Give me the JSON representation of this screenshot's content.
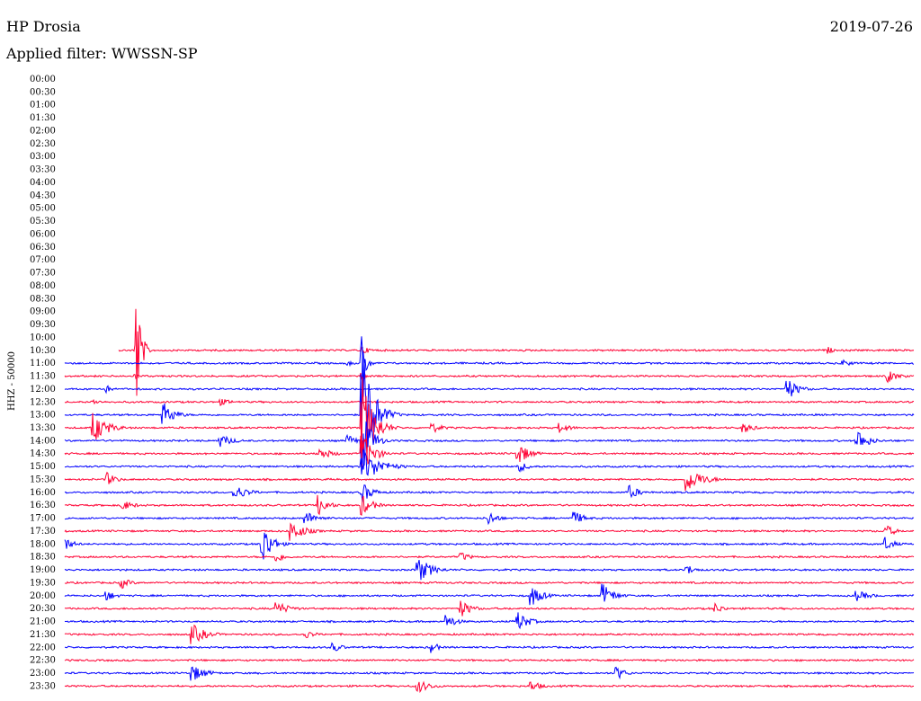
{
  "header": {
    "station": "HP Drosia",
    "date": "2019-07-26",
    "filter": "Applied filter: WWSSN-SP"
  },
  "colors": {
    "red": "#ff0033",
    "blue": "#0000ff"
  },
  "chart_data": {
    "type": "line",
    "title": "HP Drosia",
    "ylabel": "HHZ - 50000",
    "row_labels": [
      "00:00",
      "00:30",
      "01:00",
      "01:30",
      "02:00",
      "02:30",
      "03:00",
      "03:30",
      "04:00",
      "04:30",
      "05:00",
      "05:30",
      "06:00",
      "06:30",
      "07:00",
      "07:30",
      "08:00",
      "08:30",
      "09:00",
      "09:30",
      "10:00",
      "10:30",
      "11:00",
      "11:30",
      "12:00",
      "12:30",
      "13:00",
      "13:30",
      "14:00",
      "14:30",
      "15:00",
      "15:30",
      "16:00",
      "16:30",
      "17:00",
      "17:30",
      "18:00",
      "18:30",
      "19:00",
      "19:30",
      "20:00",
      "20:30",
      "21:00",
      "21:30",
      "22:00",
      "22:30",
      "23:00",
      "23:30"
    ],
    "trace_start_row": 21,
    "trace_colors_alternate": [
      "red",
      "blue"
    ],
    "events": [
      {
        "row": 21,
        "minute": 5,
        "amp": 90,
        "dur": 0.5
      },
      {
        "row": 21,
        "minute": 21,
        "amp": 4,
        "dur": 1.5
      },
      {
        "row": 21,
        "minute": 54,
        "amp": 4,
        "dur": 0.6
      },
      {
        "row": 22,
        "minute": 20,
        "amp": 3,
        "dur": 1
      },
      {
        "row": 22,
        "minute": 21,
        "amp": 30,
        "dur": 0.5
      },
      {
        "row": 22,
        "minute": 55,
        "amp": 4,
        "dur": 1.2
      },
      {
        "row": 23,
        "minute": 5,
        "amp": 3,
        "dur": 0.8
      },
      {
        "row": 23,
        "minute": 21,
        "amp": 4,
        "dur": 0.8
      },
      {
        "row": 23,
        "minute": 58,
        "amp": 9,
        "dur": 1.2
      },
      {
        "row": 24,
        "minute": 3,
        "amp": 4,
        "dur": 0.8
      },
      {
        "row": 24,
        "minute": 51,
        "amp": 14,
        "dur": 1.2
      },
      {
        "row": 25,
        "minute": 2,
        "amp": 3,
        "dur": 1.2
      },
      {
        "row": 25,
        "minute": 11,
        "amp": 4,
        "dur": 1.5
      },
      {
        "row": 26,
        "minute": 7,
        "amp": 14,
        "dur": 1.2
      },
      {
        "row": 26,
        "minute": 21,
        "amp": 80,
        "dur": 1.2
      },
      {
        "row": 27,
        "minute": 2,
        "amp": 18,
        "dur": 1.5
      },
      {
        "row": 27,
        "minute": 21,
        "amp": 60,
        "dur": 1.2
      },
      {
        "row": 27,
        "minute": 26,
        "amp": 6,
        "dur": 1.2
      },
      {
        "row": 27,
        "minute": 35,
        "amp": 6,
        "dur": 1.2
      },
      {
        "row": 27,
        "minute": 48,
        "amp": 6,
        "dur": 1.2
      },
      {
        "row": 28,
        "minute": 11,
        "amp": 7,
        "dur": 1.5
      },
      {
        "row": 28,
        "minute": 20,
        "amp": 7,
        "dur": 1
      },
      {
        "row": 28,
        "minute": 21,
        "amp": 40,
        "dur": 1
      },
      {
        "row": 28,
        "minute": 56,
        "amp": 14,
        "dur": 1.2
      },
      {
        "row": 29,
        "minute": 18,
        "amp": 7,
        "dur": 1.5
      },
      {
        "row": 29,
        "minute": 21,
        "amp": 25,
        "dur": 1.2
      },
      {
        "row": 29,
        "minute": 32,
        "amp": 14,
        "dur": 1.2
      },
      {
        "row": 30,
        "minute": 21,
        "amp": 20,
        "dur": 2
      },
      {
        "row": 30,
        "minute": 32,
        "amp": 7,
        "dur": 1.2
      },
      {
        "row": 31,
        "minute": 3,
        "amp": 8,
        "dur": 1
      },
      {
        "row": 31,
        "minute": 44,
        "amp": 14,
        "dur": 1.8
      },
      {
        "row": 32,
        "minute": 12,
        "amp": 9,
        "dur": 1.5
      },
      {
        "row": 32,
        "minute": 21,
        "amp": 12,
        "dur": 1.2
      },
      {
        "row": 32,
        "minute": 40,
        "amp": 8,
        "dur": 1
      },
      {
        "row": 33,
        "minute": 4,
        "amp": 6,
        "dur": 1.5
      },
      {
        "row": 33,
        "minute": 18,
        "amp": 12,
        "dur": 1
      },
      {
        "row": 33,
        "minute": 21,
        "amp": 12,
        "dur": 1.2
      },
      {
        "row": 34,
        "minute": 17,
        "amp": 8,
        "dur": 1.5
      },
      {
        "row": 34,
        "minute": 30,
        "amp": 8,
        "dur": 1
      },
      {
        "row": 34,
        "minute": 36,
        "amp": 8,
        "dur": 1.2
      },
      {
        "row": 35,
        "minute": 16,
        "amp": 12,
        "dur": 1.5
      },
      {
        "row": 35,
        "minute": 58,
        "amp": 8,
        "dur": 1
      },
      {
        "row": 36,
        "minute": 0,
        "amp": 8,
        "dur": 1
      },
      {
        "row": 36,
        "minute": 14,
        "amp": 25,
        "dur": 1
      },
      {
        "row": 36,
        "minute": 58,
        "amp": 8,
        "dur": 1
      },
      {
        "row": 37,
        "minute": 15,
        "amp": 6,
        "dur": 1
      },
      {
        "row": 37,
        "minute": 28,
        "amp": 6,
        "dur": 1
      },
      {
        "row": 38,
        "minute": 25,
        "amp": 14,
        "dur": 1.5
      },
      {
        "row": 38,
        "minute": 44,
        "amp": 6,
        "dur": 1
      },
      {
        "row": 39,
        "minute": 4,
        "amp": 7,
        "dur": 1
      },
      {
        "row": 40,
        "minute": 3,
        "amp": 6,
        "dur": 1
      },
      {
        "row": 40,
        "minute": 33,
        "amp": 12,
        "dur": 1.2
      },
      {
        "row": 40,
        "minute": 38,
        "amp": 14,
        "dur": 1.2
      },
      {
        "row": 40,
        "minute": 56,
        "amp": 6,
        "dur": 1.5
      },
      {
        "row": 41,
        "minute": 15,
        "amp": 8,
        "dur": 1.5
      },
      {
        "row": 41,
        "minute": 28,
        "amp": 10,
        "dur": 1.2
      },
      {
        "row": 41,
        "minute": 46,
        "amp": 6,
        "dur": 1
      },
      {
        "row": 42,
        "minute": 27,
        "amp": 8,
        "dur": 1.2
      },
      {
        "row": 42,
        "minute": 32,
        "amp": 12,
        "dur": 1.2
      },
      {
        "row": 43,
        "minute": 9,
        "amp": 12,
        "dur": 1.5
      },
      {
        "row": 43,
        "minute": 17,
        "amp": 5,
        "dur": 1.2
      },
      {
        "row": 44,
        "minute": 19,
        "amp": 6,
        "dur": 1
      },
      {
        "row": 44,
        "minute": 26,
        "amp": 8,
        "dur": 0.6
      },
      {
        "row": 46,
        "minute": 9,
        "amp": 10,
        "dur": 1.5
      },
      {
        "row": 46,
        "minute": 39,
        "amp": 8,
        "dur": 1
      },
      {
        "row": 47,
        "minute": 25,
        "amp": 7,
        "dur": 1.5
      },
      {
        "row": 47,
        "minute": 33,
        "amp": 6,
        "dur": 1.2
      }
    ]
  }
}
